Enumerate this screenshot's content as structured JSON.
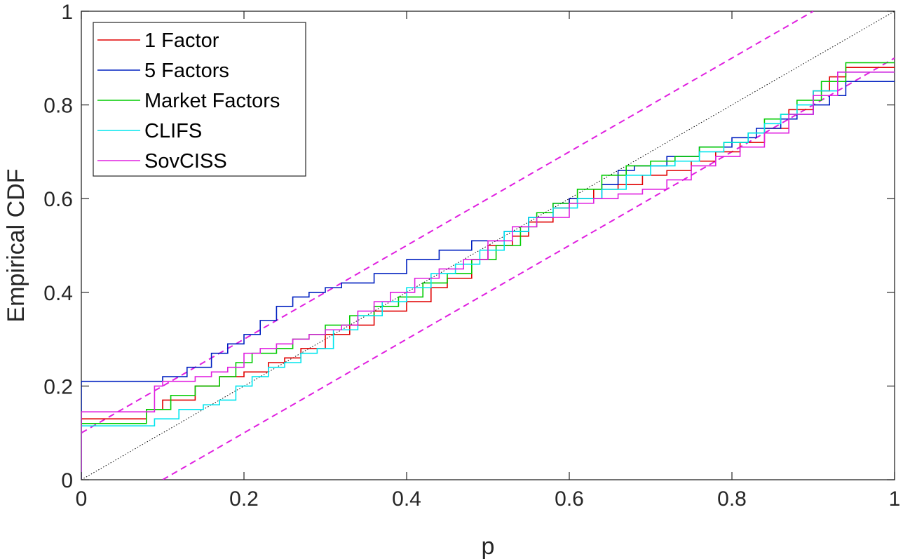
{
  "chart_data": {
    "type": "line",
    "title": "",
    "xlabel": "p",
    "ylabel": "Empirical CDF",
    "xlim": [
      0,
      1
    ],
    "ylim": [
      0,
      1
    ],
    "xticks": [
      0,
      0.2,
      0.4,
      0.6,
      0.8,
      1
    ],
    "yticks": [
      0,
      0.2,
      0.4,
      0.6,
      0.8,
      1
    ],
    "xtick_labels": [
      "0",
      "0.2",
      "0.4",
      "0.6",
      "0.8",
      "1"
    ],
    "ytick_labels": [
      "0",
      "0.2",
      "0.4",
      "0.6",
      "0.8",
      "1"
    ],
    "grid": false,
    "legend_position": "top-left",
    "series": [
      {
        "name": "1 Factor",
        "color": "#e00000",
        "style": "step",
        "x": [
          0,
          0.05,
          0.08,
          0.1,
          0.14,
          0.17,
          0.2,
          0.23,
          0.25,
          0.27,
          0.3,
          0.33,
          0.36,
          0.4,
          0.43,
          0.45,
          0.48,
          0.5,
          0.53,
          0.55,
          0.58,
          0.6,
          0.63,
          0.66,
          0.69,
          0.72,
          0.75,
          0.78,
          0.81,
          0.84,
          0.87,
          0.9,
          0.92,
          0.94,
          1.0
        ],
        "y": [
          0.13,
          0.13,
          0.15,
          0.17,
          0.2,
          0.22,
          0.23,
          0.25,
          0.26,
          0.28,
          0.31,
          0.33,
          0.36,
          0.38,
          0.41,
          0.43,
          0.47,
          0.5,
          0.52,
          0.55,
          0.58,
          0.6,
          0.62,
          0.63,
          0.65,
          0.66,
          0.68,
          0.7,
          0.72,
          0.75,
          0.79,
          0.83,
          0.86,
          0.88,
          0.88
        ]
      },
      {
        "name": "5 Factors",
        "color": "#0020c0",
        "style": "step",
        "x": [
          0,
          0.08,
          0.1,
          0.13,
          0.16,
          0.18,
          0.2,
          0.22,
          0.24,
          0.26,
          0.28,
          0.3,
          0.32,
          0.36,
          0.4,
          0.44,
          0.48,
          0.52,
          0.55,
          0.58,
          0.6,
          0.64,
          0.66,
          0.68,
          0.72,
          0.76,
          0.8,
          0.83,
          0.86,
          0.88,
          0.9,
          0.92,
          0.94,
          1.0
        ],
        "y": [
          0.21,
          0.21,
          0.22,
          0.24,
          0.27,
          0.29,
          0.31,
          0.34,
          0.37,
          0.39,
          0.4,
          0.41,
          0.42,
          0.44,
          0.47,
          0.49,
          0.51,
          0.53,
          0.56,
          0.59,
          0.6,
          0.63,
          0.66,
          0.67,
          0.69,
          0.71,
          0.73,
          0.75,
          0.77,
          0.78,
          0.8,
          0.82,
          0.85,
          0.85
        ]
      },
      {
        "name": "Market Factors",
        "color": "#00cc00",
        "style": "step",
        "x": [
          0,
          0.06,
          0.08,
          0.11,
          0.14,
          0.17,
          0.19,
          0.21,
          0.24,
          0.26,
          0.28,
          0.3,
          0.33,
          0.36,
          0.39,
          0.42,
          0.45,
          0.48,
          0.51,
          0.54,
          0.56,
          0.58,
          0.61,
          0.64,
          0.67,
          0.7,
          0.73,
          0.76,
          0.79,
          0.82,
          0.84,
          0.86,
          0.88,
          0.91,
          0.94,
          1.0
        ],
        "y": [
          0.12,
          0.12,
          0.15,
          0.18,
          0.2,
          0.22,
          0.25,
          0.27,
          0.28,
          0.3,
          0.31,
          0.33,
          0.35,
          0.37,
          0.39,
          0.42,
          0.44,
          0.47,
          0.5,
          0.54,
          0.57,
          0.59,
          0.62,
          0.65,
          0.67,
          0.68,
          0.69,
          0.71,
          0.72,
          0.74,
          0.77,
          0.78,
          0.81,
          0.85,
          0.89,
          0.89
        ]
      },
      {
        "name": "CLIFS",
        "color": "#00e5ee",
        "style": "step",
        "x": [
          0,
          0.06,
          0.09,
          0.12,
          0.15,
          0.17,
          0.19,
          0.21,
          0.23,
          0.25,
          0.27,
          0.29,
          0.31,
          0.34,
          0.37,
          0.4,
          0.43,
          0.46,
          0.49,
          0.52,
          0.55,
          0.58,
          0.61,
          0.64,
          0.67,
          0.7,
          0.73,
          0.76,
          0.79,
          0.82,
          0.84,
          0.86,
          0.88,
          0.9,
          0.93,
          1.0
        ],
        "y": [
          0.115,
          0.115,
          0.13,
          0.15,
          0.16,
          0.17,
          0.2,
          0.22,
          0.24,
          0.25,
          0.27,
          0.28,
          0.32,
          0.35,
          0.38,
          0.41,
          0.44,
          0.46,
          0.49,
          0.53,
          0.56,
          0.58,
          0.6,
          0.62,
          0.65,
          0.67,
          0.68,
          0.7,
          0.72,
          0.74,
          0.76,
          0.78,
          0.8,
          0.83,
          0.87,
          0.87
        ]
      },
      {
        "name": "SovCISS",
        "color": "#e020e0",
        "style": "step",
        "x": [
          0,
          0.07,
          0.09,
          0.1,
          0.12,
          0.14,
          0.16,
          0.18,
          0.2,
          0.22,
          0.24,
          0.26,
          0.28,
          0.3,
          0.32,
          0.34,
          0.36,
          0.38,
          0.41,
          0.44,
          0.47,
          0.5,
          0.53,
          0.56,
          0.6,
          0.63,
          0.66,
          0.69,
          0.72,
          0.75,
          0.78,
          0.81,
          0.84,
          0.87,
          0.9,
          0.93,
          1.0
        ],
        "y": [
          0.145,
          0.145,
          0.2,
          0.21,
          0.21,
          0.22,
          0.23,
          0.24,
          0.27,
          0.28,
          0.29,
          0.3,
          0.31,
          0.32,
          0.33,
          0.36,
          0.38,
          0.4,
          0.43,
          0.45,
          0.47,
          0.51,
          0.54,
          0.56,
          0.59,
          0.6,
          0.61,
          0.62,
          0.64,
          0.67,
          0.69,
          0.71,
          0.74,
          0.78,
          0.82,
          0.87,
          0.87
        ]
      }
    ],
    "reference_lines": [
      {
        "kind": "diagonal",
        "color": "#000000",
        "style": "dotted",
        "x": [
          0,
          1
        ],
        "y": [
          0,
          1
        ]
      },
      {
        "kind": "upper-band",
        "color": "#e020e0",
        "style": "dashed",
        "x": [
          0,
          0.9
        ],
        "y": [
          0.1,
          1.0
        ]
      },
      {
        "kind": "lower-band",
        "color": "#e020e0",
        "style": "dashed",
        "x": [
          0.1,
          1.0
        ],
        "y": [
          0,
          0.9
        ]
      }
    ]
  }
}
